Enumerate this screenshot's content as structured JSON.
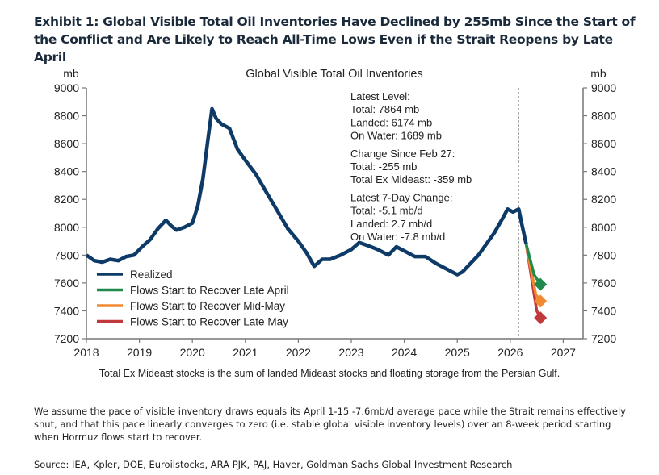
{
  "exhibit_title": "Exhibit 1: Global Visible Total Oil Inventories Have Declined by 255mb Since the Start of the Conflict and Are Likely to Reach All-Time Lows Even if the Strait Reopens by Late April",
  "chart_data": {
    "type": "line",
    "title": "Global Visible Total Oil Inventories",
    "ylabel_left": "mb",
    "ylabel_right": "mb",
    "ylim": [
      7200,
      9000
    ],
    "yticks": [
      7200,
      7400,
      7600,
      7800,
      8000,
      8200,
      8400,
      8600,
      8800,
      9000
    ],
    "xlim": [
      2018,
      2027.3
    ],
    "xticks": [
      2018,
      2019,
      2020,
      2021,
      2022,
      2023,
      2024,
      2025,
      2026,
      2027
    ],
    "grid": false,
    "legend_position": "bottom-left",
    "vertical_marker_x": 2026.16,
    "series": [
      {
        "name": "Realized",
        "color": "#0d3a66",
        "points": [
          [
            2018.0,
            7800
          ],
          [
            2018.15,
            7760
          ],
          [
            2018.3,
            7750
          ],
          [
            2018.45,
            7770
          ],
          [
            2018.6,
            7760
          ],
          [
            2018.75,
            7790
          ],
          [
            2018.9,
            7800
          ],
          [
            2019.05,
            7860
          ],
          [
            2019.2,
            7910
          ],
          [
            2019.35,
            7990
          ],
          [
            2019.5,
            8050
          ],
          [
            2019.6,
            8010
          ],
          [
            2019.7,
            7980
          ],
          [
            2019.85,
            8000
          ],
          [
            2020.0,
            8030
          ],
          [
            2020.1,
            8150
          ],
          [
            2020.2,
            8350
          ],
          [
            2020.3,
            8650
          ],
          [
            2020.37,
            8850
          ],
          [
            2020.45,
            8780
          ],
          [
            2020.55,
            8740
          ],
          [
            2020.7,
            8710
          ],
          [
            2020.85,
            8560
          ],
          [
            2021.0,
            8480
          ],
          [
            2021.2,
            8380
          ],
          [
            2021.4,
            8250
          ],
          [
            2021.6,
            8120
          ],
          [
            2021.8,
            7990
          ],
          [
            2022.0,
            7900
          ],
          [
            2022.15,
            7820
          ],
          [
            2022.3,
            7720
          ],
          [
            2022.45,
            7770
          ],
          [
            2022.6,
            7770
          ],
          [
            2022.8,
            7800
          ],
          [
            2023.0,
            7840
          ],
          [
            2023.15,
            7890
          ],
          [
            2023.3,
            7870
          ],
          [
            2023.5,
            7840
          ],
          [
            2023.7,
            7800
          ],
          [
            2023.85,
            7860
          ],
          [
            2024.0,
            7830
          ],
          [
            2024.2,
            7790
          ],
          [
            2024.4,
            7790
          ],
          [
            2024.6,
            7740
          ],
          [
            2024.8,
            7700
          ],
          [
            2025.0,
            7660
          ],
          [
            2025.1,
            7680
          ],
          [
            2025.25,
            7740
          ],
          [
            2025.4,
            7800
          ],
          [
            2025.55,
            7880
          ],
          [
            2025.7,
            7960
          ],
          [
            2025.85,
            8060
          ],
          [
            2025.95,
            8130
          ],
          [
            2026.05,
            8110
          ],
          [
            2026.16,
            8130
          ],
          [
            2026.22,
            8020
          ],
          [
            2026.3,
            7880
          ]
        ]
      },
      {
        "name": "Flows Start to Recover Late April",
        "color": "#1e8a4c",
        "points": [
          [
            2026.3,
            7880
          ],
          [
            2026.45,
            7660
          ],
          [
            2026.57,
            7590
          ]
        ]
      },
      {
        "name": "Flows Start to Recover Mid-May",
        "color": "#f08a30",
        "points": [
          [
            2026.3,
            7880
          ],
          [
            2026.48,
            7520
          ],
          [
            2026.57,
            7470
          ]
        ]
      },
      {
        "name": "Flows Start to Recover Late May",
        "color": "#c0393b",
        "points": [
          [
            2026.3,
            7880
          ],
          [
            2026.5,
            7400
          ],
          [
            2026.57,
            7350
          ]
        ]
      }
    ],
    "annotation_lines": [
      "Latest Level:",
      "Total: 7864 mb",
      "Landed: 6174 mb",
      "On Water: 1689 mb",
      "Change Since Feb 27:",
      "Total: -255 mb",
      "Total Ex Mideast: -359 mb",
      "Latest 7-Day Change:",
      "Total: -5.1 mb/d",
      "Landed: 2.7 mb/d",
      "On Water: -7.8 mb/d"
    ]
  },
  "chart_footnote": "Total Ex Mideast stocks is the sum of landed Mideast stocks and floating storage from the Persian Gulf.",
  "assumption_note": "We assume the pace of visible inventory draws equals its April 1-15 -7.6mb/d average pace while the Strait remains effectively shut, and that this pace linearly converges to zero (i.e. stable global visible inventory levels) over an 8-week period starting when Hormuz flows start to recover.",
  "source": "Source: IEA, Kpler, DOE, Euroilstocks, ARA PJK, PAJ, Haver, Goldman Sachs Global Investment Research"
}
